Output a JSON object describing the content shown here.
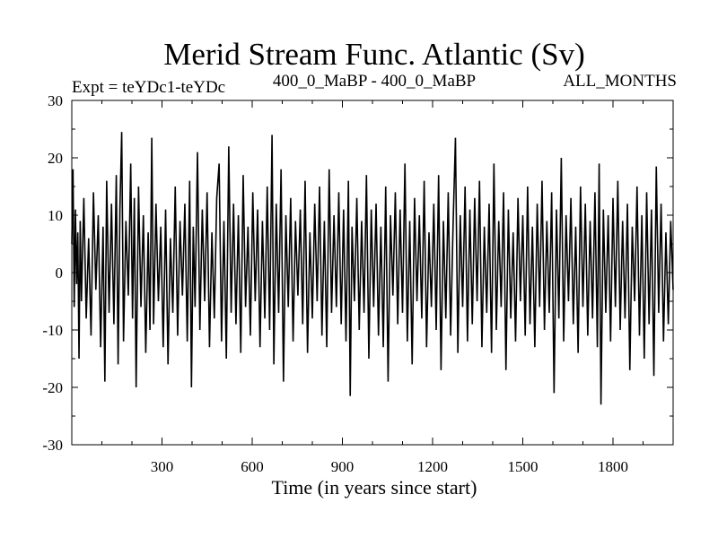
{
  "chart_data": {
    "type": "line",
    "title": "Merid Stream Func. Atlantic (Sv)",
    "subtitle_left": "Expt = teYDc1-teYDc",
    "subtitle_center": "400_0_MaBP - 400_0_MaBP",
    "subtitle_right": "ALL_MONTHS",
    "xlabel": "Time (in years since start)",
    "ylabel": "",
    "xlim": [
      0,
      2000
    ],
    "ylim": [
      -30,
      30
    ],
    "x_ticks": [
      300,
      600,
      900,
      1200,
      1500,
      1800
    ],
    "x_tick_labels": [
      "300",
      "600",
      "900",
      "1200",
      "1500",
      "1800"
    ],
    "y_ticks": [
      -30,
      -20,
      -10,
      0,
      10,
      20,
      30
    ],
    "y_tick_labels": [
      "-30",
      "-20",
      "-10",
      "0",
      "10",
      "20",
      "30"
    ],
    "grid": false,
    "series": [
      {
        "color": "#000000",
        "points": [
          [
            0,
            5
          ],
          [
            4,
            18
          ],
          [
            8,
            -6
          ],
          [
            12,
            11
          ],
          [
            16,
            -2
          ],
          [
            20,
            7
          ],
          [
            24,
            -15
          ],
          [
            28,
            9
          ],
          [
            32,
            -5
          ],
          [
            40,
            13
          ],
          [
            48,
            -8
          ],
          [
            56,
            6
          ],
          [
            64,
            -11
          ],
          [
            72,
            14
          ],
          [
            80,
            -3
          ],
          [
            88,
            10
          ],
          [
            96,
            -13
          ],
          [
            104,
            8
          ],
          [
            110,
            -19
          ],
          [
            116,
            16
          ],
          [
            124,
            -7
          ],
          [
            132,
            12
          ],
          [
            140,
            -9
          ],
          [
            148,
            17
          ],
          [
            154,
            -16
          ],
          [
            160,
            11
          ],
          [
            166,
            24.5
          ],
          [
            172,
            -12
          ],
          [
            180,
            9
          ],
          [
            188,
            -4
          ],
          [
            196,
            19
          ],
          [
            202,
            -8
          ],
          [
            208,
            13
          ],
          [
            214,
            -20
          ],
          [
            222,
            15
          ],
          [
            230,
            -6
          ],
          [
            238,
            10
          ],
          [
            246,
            -14
          ],
          [
            254,
            7
          ],
          [
            260,
            -10
          ],
          [
            266,
            23.5
          ],
          [
            272,
            -9
          ],
          [
            280,
            12
          ],
          [
            288,
            -5
          ],
          [
            296,
            8
          ],
          [
            304,
            -13
          ],
          [
            312,
            11
          ],
          [
            320,
            -16
          ],
          [
            328,
            6
          ],
          [
            336,
            -7
          ],
          [
            344,
            15
          ],
          [
            352,
            -11
          ],
          [
            360,
            9
          ],
          [
            368,
            -4
          ],
          [
            376,
            12
          ],
          [
            384,
            -12
          ],
          [
            392,
            16
          ],
          [
            398,
            -20
          ],
          [
            404,
            8
          ],
          [
            410,
            -6
          ],
          [
            418,
            21
          ],
          [
            426,
            -10
          ],
          [
            434,
            11
          ],
          [
            442,
            -5
          ],
          [
            450,
            14
          ],
          [
            458,
            -13
          ],
          [
            466,
            7
          ],
          [
            474,
            -8
          ],
          [
            482,
            13
          ],
          [
            490,
            19
          ],
          [
            498,
            -12
          ],
          [
            506,
            9
          ],
          [
            514,
            -15
          ],
          [
            522,
            22
          ],
          [
            530,
            -7
          ],
          [
            538,
            12
          ],
          [
            546,
            -9
          ],
          [
            554,
            10
          ],
          [
            562,
            -14
          ],
          [
            570,
            17
          ],
          [
            578,
            -6
          ],
          [
            586,
            8
          ],
          [
            594,
            -11
          ],
          [
            602,
            14
          ],
          [
            610,
            -5
          ],
          [
            618,
            11
          ],
          [
            626,
            -13
          ],
          [
            634,
            9
          ],
          [
            642,
            -8
          ],
          [
            650,
            15
          ],
          [
            658,
            -10
          ],
          [
            666,
            24
          ],
          [
            672,
            -16
          ],
          [
            680,
            12
          ],
          [
            688,
            -7
          ],
          [
            696,
            18
          ],
          [
            704,
            -19
          ],
          [
            712,
            10
          ],
          [
            720,
            -6
          ],
          [
            728,
            13
          ],
          [
            736,
            -12
          ],
          [
            744,
            9
          ],
          [
            752,
            -4
          ],
          [
            760,
            11
          ],
          [
            768,
            -9
          ],
          [
            776,
            16
          ],
          [
            784,
            -14
          ],
          [
            792,
            7
          ],
          [
            800,
            -8
          ],
          [
            808,
            12
          ],
          [
            816,
            -5
          ],
          [
            824,
            15
          ],
          [
            832,
            -11
          ],
          [
            840,
            9
          ],
          [
            848,
            -13
          ],
          [
            856,
            18
          ],
          [
            864,
            -7
          ],
          [
            872,
            10
          ],
          [
            880,
            -6
          ],
          [
            888,
            14
          ],
          [
            896,
            -9
          ],
          [
            904,
            11
          ],
          [
            912,
            -12
          ],
          [
            920,
            16
          ],
          [
            926,
            -21.5
          ],
          [
            932,
            8
          ],
          [
            940,
            -5
          ],
          [
            948,
            13
          ],
          [
            956,
            -10
          ],
          [
            964,
            9
          ],
          [
            972,
            -7
          ],
          [
            980,
            17
          ],
          [
            988,
            -15
          ],
          [
            996,
            11
          ],
          [
            1004,
            -6
          ],
          [
            1012,
            12
          ],
          [
            1020,
            -11
          ],
          [
            1028,
            8
          ],
          [
            1036,
            -13
          ],
          [
            1044,
            15
          ],
          [
            1052,
            -19
          ],
          [
            1060,
            10
          ],
          [
            1068,
            -4
          ],
          [
            1076,
            14
          ],
          [
            1084,
            -9
          ],
          [
            1092,
            11
          ],
          [
            1100,
            -7
          ],
          [
            1108,
            19
          ],
          [
            1116,
            -12
          ],
          [
            1124,
            9
          ],
          [
            1132,
            -16
          ],
          [
            1140,
            13
          ],
          [
            1148,
            -5
          ],
          [
            1156,
            10
          ],
          [
            1164,
            -8
          ],
          [
            1172,
            16
          ],
          [
            1180,
            -13
          ],
          [
            1188,
            7
          ],
          [
            1196,
            -6
          ],
          [
            1204,
            12
          ],
          [
            1212,
            -10
          ],
          [
            1220,
            17
          ],
          [
            1228,
            -17
          ],
          [
            1236,
            9
          ],
          [
            1244,
            -8
          ],
          [
            1252,
            14
          ],
          [
            1260,
            -11
          ],
          [
            1268,
            8
          ],
          [
            1276,
            23.5
          ],
          [
            1284,
            -14
          ],
          [
            1292,
            10
          ],
          [
            1300,
            -6
          ],
          [
            1308,
            15
          ],
          [
            1316,
            -12
          ],
          [
            1324,
            11
          ],
          [
            1332,
            -9
          ],
          [
            1340,
            13
          ],
          [
            1348,
            -5
          ],
          [
            1356,
            16
          ],
          [
            1364,
            -13
          ],
          [
            1372,
            8
          ],
          [
            1380,
            -7
          ],
          [
            1388,
            12
          ],
          [
            1396,
            -14
          ],
          [
            1404,
            19
          ],
          [
            1412,
            -10
          ],
          [
            1420,
            9
          ],
          [
            1428,
            -6
          ],
          [
            1436,
            14
          ],
          [
            1444,
            -17
          ],
          [
            1452,
            11
          ],
          [
            1460,
            -8
          ],
          [
            1468,
            7
          ],
          [
            1476,
            -12
          ],
          [
            1484,
            13
          ],
          [
            1492,
            -5
          ],
          [
            1500,
            10
          ],
          [
            1508,
            -11
          ],
          [
            1516,
            15
          ],
          [
            1524,
            -9
          ],
          [
            1532,
            8
          ],
          [
            1540,
            -13
          ],
          [
            1548,
            12
          ],
          [
            1556,
            -6
          ],
          [
            1564,
            16
          ],
          [
            1572,
            -10
          ],
          [
            1580,
            9
          ],
          [
            1588,
            -7
          ],
          [
            1596,
            14
          ],
          [
            1604,
            -21
          ],
          [
            1612,
            11
          ],
          [
            1620,
            -8
          ],
          [
            1628,
            20
          ],
          [
            1636,
            -12
          ],
          [
            1644,
            10
          ],
          [
            1652,
            -5
          ],
          [
            1660,
            13
          ],
          [
            1668,
            -9
          ],
          [
            1676,
            8
          ],
          [
            1684,
            -14
          ],
          [
            1692,
            15
          ],
          [
            1700,
            -6
          ],
          [
            1708,
            12
          ],
          [
            1716,
            -11
          ],
          [
            1724,
            9
          ],
          [
            1732,
            -8
          ],
          [
            1740,
            14
          ],
          [
            1748,
            -13
          ],
          [
            1754,
            19
          ],
          [
            1760,
            -23
          ],
          [
            1768,
            11
          ],
          [
            1776,
            -7
          ],
          [
            1784,
            10
          ],
          [
            1792,
            -12
          ],
          [
            1800,
            13
          ],
          [
            1808,
            -6
          ],
          [
            1816,
            16
          ],
          [
            1824,
            -10
          ],
          [
            1832,
            9
          ],
          [
            1840,
            -8
          ],
          [
            1848,
            12
          ],
          [
            1856,
            -17
          ],
          [
            1864,
            8
          ],
          [
            1872,
            -5
          ],
          [
            1880,
            15
          ],
          [
            1888,
            -11
          ],
          [
            1896,
            10
          ],
          [
            1904,
            -15
          ],
          [
            1912,
            14
          ],
          [
            1920,
            -9
          ],
          [
            1928,
            11
          ],
          [
            1936,
            -18
          ],
          [
            1944,
            18.5
          ],
          [
            1952,
            -7
          ],
          [
            1960,
            12
          ],
          [
            1968,
            -12
          ],
          [
            1976,
            7
          ],
          [
            1984,
            -9
          ],
          [
            1992,
            9
          ],
          [
            2000,
            -3
          ]
        ]
      }
    ]
  }
}
